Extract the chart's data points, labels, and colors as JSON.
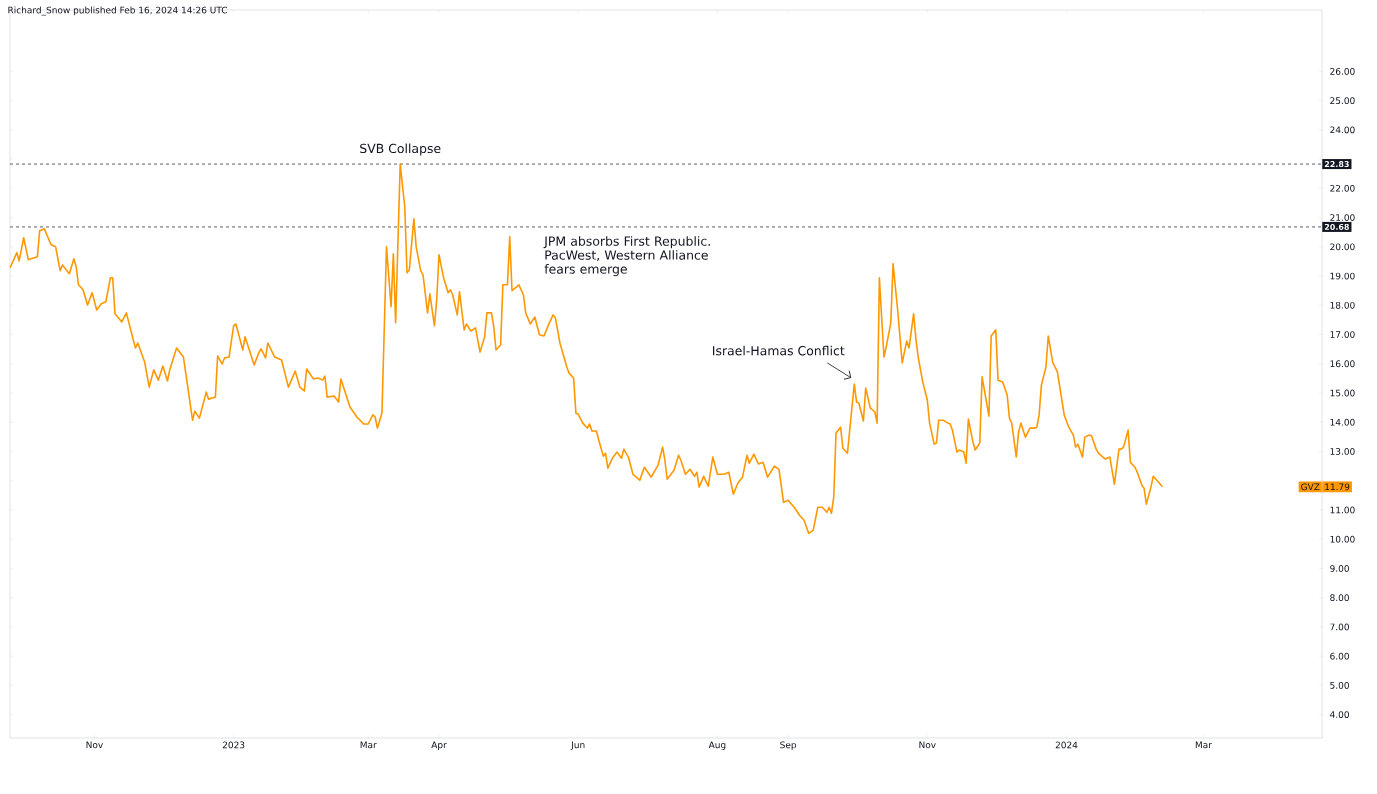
{
  "chart_data": {
    "type": "line",
    "x": [
      "2022-09-25",
      "2022-09-28",
      "2022-09-29",
      "2022-10-01",
      "2022-10-03",
      "2022-10-07",
      "2022-10-08",
      "2022-10-10",
      "2022-10-13",
      "2022-10-15",
      "2022-10-17",
      "2022-10-18",
      "2022-10-21",
      "2022-10-23",
      "2022-10-24",
      "2022-10-25",
      "2022-10-27",
      "2022-10-29",
      "2022-10-31",
      "2022-11-02",
      "2022-11-04",
      "2022-11-06",
      "2022-11-08",
      "2022-11-09",
      "2022-11-10",
      "2022-11-13",
      "2022-11-15",
      "2022-11-18",
      "2022-11-19",
      "2022-11-20",
      "2022-11-23",
      "2022-11-25",
      "2022-11-27",
      "2022-11-29",
      "2022-12-01",
      "2022-12-03",
      "2022-12-04",
      "2022-12-07",
      "2022-12-10",
      "2022-12-14",
      "2022-12-15",
      "2022-12-17",
      "2022-12-20",
      "2022-12-21",
      "2022-12-24",
      "2022-12-25",
      "2022-12-27",
      "2022-12-28",
      "2022-12-30",
      "2023-01-01",
      "2023-01-02",
      "2023-01-05",
      "2023-01-06",
      "2023-01-10",
      "2023-01-12",
      "2023-01-13",
      "2023-01-15",
      "2023-01-16",
      "2023-01-19",
      "2023-01-22",
      "2023-01-25",
      "2023-01-28",
      "2023-01-30",
      "2023-02-01",
      "2023-02-02",
      "2023-02-05",
      "2023-02-07",
      "2023-02-09",
      "2023-02-10",
      "2023-02-11",
      "2023-02-14",
      "2023-02-16",
      "2023-02-17",
      "2023-02-19",
      "2023-02-21",
      "2023-02-24",
      "2023-02-27",
      "2023-03-01",
      "2023-03-03",
      "2023-03-04",
      "2023-03-05",
      "2023-03-07",
      "2023-03-09",
      "2023-03-11",
      "2023-03-12",
      "2023-03-13",
      "2023-03-15",
      "2023-03-17",
      "2023-03-18",
      "2023-03-19",
      "2023-03-21",
      "2023-03-22",
      "2023-03-24",
      "2023-03-25",
      "2023-03-27",
      "2023-03-28",
      "2023-03-30",
      "2023-03-31",
      "2023-04-01",
      "2023-04-03",
      "2023-04-05",
      "2023-04-06",
      "2023-04-07",
      "2023-04-09",
      "2023-04-10",
      "2023-04-12",
      "2023-04-13",
      "2023-04-15",
      "2023-04-17",
      "2023-04-19",
      "2023-04-21",
      "2023-04-22",
      "2023-04-24",
      "2023-04-25",
      "2023-04-26",
      "2023-04-28",
      "2023-04-29",
      "2023-05-01",
      "2023-05-02",
      "2023-05-03",
      "2023-05-05",
      "2023-05-06",
      "2023-05-08",
      "2023-05-09",
      "2023-05-11",
      "2023-05-13",
      "2023-05-15",
      "2023-05-17",
      "2023-05-19",
      "2023-05-21",
      "2023-05-22",
      "2023-05-24",
      "2023-05-27",
      "2023-05-28",
      "2023-05-30",
      "2023-05-31",
      "2023-06-01",
      "2023-06-03",
      "2023-06-05",
      "2023-06-06",
      "2023-06-07",
      "2023-06-09",
      "2023-06-10",
      "2023-06-12",
      "2023-06-13",
      "2023-06-14",
      "2023-06-16",
      "2023-06-18",
      "2023-06-20",
      "2023-06-21",
      "2023-06-23",
      "2023-06-25",
      "2023-06-28",
      "2023-06-30",
      "2023-07-03",
      "2023-07-06",
      "2023-07-08",
      "2023-07-09",
      "2023-07-10",
      "2023-07-13",
      "2023-07-15",
      "2023-07-16",
      "2023-07-18",
      "2023-07-20",
      "2023-07-22",
      "2023-07-23",
      "2023-07-24",
      "2023-07-26",
      "2023-07-28",
      "2023-07-30",
      "2023-08-01",
      "2023-08-04",
      "2023-08-06",
      "2023-08-08",
      "2023-08-10",
      "2023-08-12",
      "2023-08-14",
      "2023-08-15",
      "2023-08-17",
      "2023-08-19",
      "2023-08-21",
      "2023-08-23",
      "2023-08-26",
      "2023-08-28",
      "2023-08-30",
      "2023-09-01",
      "2023-09-04",
      "2023-09-06",
      "2023-09-08",
      "2023-09-10",
      "2023-09-12",
      "2023-09-14",
      "2023-09-16",
      "2023-09-18",
      "2023-09-19",
      "2023-09-20",
      "2023-09-21",
      "2023-09-22",
      "2023-09-24",
      "2023-09-25",
      "2023-09-27",
      "2023-09-30",
      "2023-10-01",
      "2023-10-02",
      "2023-10-04",
      "2023-10-05",
      "2023-10-07",
      "2023-10-09",
      "2023-10-10",
      "2023-10-11",
      "2023-10-13",
      "2023-10-14",
      "2023-10-16",
      "2023-10-17",
      "2023-10-19",
      "2023-10-21",
      "2023-10-23",
      "2023-10-24",
      "2023-10-26",
      "2023-10-27",
      "2023-10-28",
      "2023-10-30",
      "2023-11-01",
      "2023-11-02",
      "2023-11-04",
      "2023-11-05",
      "2023-11-06",
      "2023-11-08",
      "2023-11-10",
      "2023-11-11",
      "2023-11-12",
      "2023-11-14",
      "2023-11-15",
      "2023-11-17",
      "2023-11-18",
      "2023-11-19",
      "2023-11-21",
      "2023-11-22",
      "2023-11-24",
      "2023-11-25",
      "2023-11-28",
      "2023-11-29",
      "2023-12-01",
      "2023-12-02",
      "2023-12-04",
      "2023-12-06",
      "2023-12-07",
      "2023-12-08",
      "2023-12-10",
      "2023-12-11",
      "2023-12-12",
      "2023-12-14",
      "2023-12-16",
      "2023-12-18",
      "2023-12-19",
      "2023-12-20",
      "2023-12-21",
      "2023-12-23",
      "2023-12-24",
      "2023-12-26",
      "2023-12-27",
      "2023-12-28",
      "2023-12-31",
      "2024-01-02",
      "2024-01-04",
      "2024-01-05",
      "2024-01-06",
      "2024-01-08",
      "2024-01-09",
      "2024-01-11",
      "2024-01-12",
      "2024-01-14",
      "2024-01-15",
      "2024-01-18",
      "2024-01-20",
      "2024-01-22",
      "2024-01-24",
      "2024-01-25",
      "2024-01-26",
      "2024-01-28",
      "2024-01-29",
      "2024-01-31",
      "2024-02-01",
      "2024-02-03",
      "2024-02-04",
      "2024-02-05",
      "2024-02-07",
      "2024-02-08",
      "2024-02-10",
      "2024-02-12"
    ],
    "series": [
      {
        "name": "GVZ",
        "color": "#ff9800",
        "values": [
          19.28,
          19.8,
          19.52,
          20.31,
          19.56,
          19.66,
          20.55,
          20.62,
          20.07,
          20.0,
          19.18,
          19.38,
          19.08,
          19.59,
          19.32,
          18.7,
          18.53,
          18.01,
          18.43,
          17.84,
          18.05,
          18.12,
          18.94,
          18.94,
          17.71,
          17.43,
          17.74,
          16.82,
          16.54,
          16.71,
          16.06,
          15.2,
          15.79,
          15.44,
          15.92,
          15.41,
          15.79,
          16.54,
          16.23,
          14.07,
          14.38,
          14.14,
          15.03,
          14.79,
          14.86,
          16.27,
          15.99,
          16.2,
          16.23,
          17.3,
          17.36,
          16.47,
          16.92,
          15.96,
          16.37,
          16.51,
          16.2,
          16.71,
          16.23,
          16.13,
          15.2,
          15.75,
          15.2,
          15.07,
          15.82,
          15.48,
          15.51,
          15.44,
          15.58,
          14.86,
          14.9,
          14.69,
          15.48,
          15.0,
          14.52,
          14.18,
          13.94,
          13.94,
          14.25,
          14.18,
          13.8,
          14.31,
          20.0,
          17.95,
          19.76,
          17.4,
          22.83,
          21.37,
          19.11,
          19.21,
          20.96,
          20.0,
          19.18,
          19.04,
          17.74,
          18.39,
          17.3,
          18.19,
          19.73,
          18.94,
          18.43,
          18.53,
          18.36,
          17.67,
          18.46,
          17.16,
          17.36,
          17.12,
          17.23,
          16.4,
          16.92,
          17.74,
          17.74,
          17.26,
          16.47,
          16.64,
          18.7,
          18.7,
          20.35,
          18.5,
          18.63,
          18.7,
          18.36,
          17.74,
          17.36,
          17.6,
          16.99,
          16.95,
          17.33,
          17.67,
          17.57,
          16.71,
          15.89,
          15.68,
          15.51,
          14.31,
          14.28,
          13.97,
          13.8,
          13.94,
          13.7,
          13.7,
          13.39,
          12.84,
          12.94,
          12.43,
          12.77,
          12.98,
          12.77,
          13.08,
          12.81,
          12.22,
          12.02,
          12.46,
          12.12,
          12.53,
          13.15,
          12.7,
          12.05,
          12.36,
          12.87,
          12.7,
          12.22,
          12.39,
          12.15,
          12.29,
          11.78,
          12.15,
          11.81,
          12.81,
          12.22,
          12.22,
          12.29,
          11.54,
          11.92,
          12.12,
          12.87,
          12.6,
          12.91,
          12.57,
          12.63,
          12.12,
          12.5,
          12.39,
          11.26,
          11.33,
          11.06,
          10.82,
          10.65,
          10.2,
          10.3,
          11.09,
          11.09,
          10.92,
          11.09,
          10.89,
          11.44,
          13.63,
          13.83,
          13.11,
          12.94,
          15.31,
          14.69,
          14.66,
          14.04,
          15.17,
          14.49,
          14.35,
          13.97,
          18.94,
          16.23,
          16.58,
          17.4,
          19.42,
          17.84,
          16.03,
          16.78,
          16.54,
          17.71,
          16.85,
          16.23,
          15.38,
          14.76,
          13.97,
          13.25,
          13.29,
          14.07,
          14.07,
          13.97,
          13.94,
          13.73,
          12.98,
          13.05,
          12.98,
          12.6,
          14.11,
          13.32,
          13.05,
          13.29,
          15.55,
          14.21,
          16.95,
          17.16,
          15.44,
          15.38,
          14.93,
          14.14,
          13.97,
          12.81,
          13.66,
          13.97,
          13.49,
          13.8,
          13.8,
          13.83,
          14.25,
          15.27,
          15.89,
          16.95,
          16.03,
          15.89,
          15.72,
          14.25,
          13.83,
          13.56,
          13.15,
          13.25,
          12.81,
          13.49,
          13.56,
          13.53,
          13.08,
          12.94,
          12.74,
          12.81,
          11.88,
          13.08,
          13.08,
          13.15,
          13.73,
          12.63,
          12.46,
          12.29,
          11.85,
          11.74,
          11.2,
          11.78,
          12.15,
          11.98,
          11.79
        ]
      }
    ],
    "xlim": [
      "2022-09-25",
      "2024-04-22"
    ],
    "xticks": [
      {
        "value": "2022-11-01",
        "label": "Nov"
      },
      {
        "value": "2023-01-01",
        "label": "2023"
      },
      {
        "value": "2023-03-01",
        "label": "Mar"
      },
      {
        "value": "2023-04-01",
        "label": "Apr"
      },
      {
        "value": "2023-06-01",
        "label": "Jun"
      },
      {
        "value": "2023-08-01",
        "label": "Aug"
      },
      {
        "value": "2023-09-01",
        "label": "Sep"
      },
      {
        "value": "2023-11-01",
        "label": "Nov"
      },
      {
        "value": "2024-01-01",
        "label": "2024"
      },
      {
        "value": "2024-03-01",
        "label": "Mar"
      }
    ],
    "ylim": [
      3.2,
      28.1
    ],
    "yticks": [
      {
        "value": 4,
        "label": "4.00"
      },
      {
        "value": 5,
        "label": "5.00"
      },
      {
        "value": 6,
        "label": "6.00"
      },
      {
        "value": 7,
        "label": "7.00"
      },
      {
        "value": 8,
        "label": "8.00"
      },
      {
        "value": 9,
        "label": "9.00"
      },
      {
        "value": 10,
        "label": "10.00"
      },
      {
        "value": 11,
        "label": "11.00"
      },
      {
        "value": 12,
        "label": null
      },
      {
        "value": 13,
        "label": "13.00"
      },
      {
        "value": 14,
        "label": "14.00"
      },
      {
        "value": 15,
        "label": "15.00"
      },
      {
        "value": 16,
        "label": "16.00"
      },
      {
        "value": 17,
        "label": "17.00"
      },
      {
        "value": 18,
        "label": "18.00"
      },
      {
        "value": 19,
        "label": "19.00"
      },
      {
        "value": 20,
        "label": "20.00"
      },
      {
        "value": 21,
        "label": "21.00"
      },
      {
        "value": 22,
        "label": "22.00"
      },
      {
        "value": 23,
        "label": null
      },
      {
        "value": 24,
        "label": "24.00"
      },
      {
        "value": 25,
        "label": "25.00"
      },
      {
        "value": 26,
        "label": "26.00"
      }
    ],
    "ref_lines": [
      {
        "axis": "y",
        "value": 22.83,
        "label": "22.83",
        "color": "#131722",
        "line_style": "dashed"
      },
      {
        "axis": "y",
        "value": 20.68,
        "label": "20.68",
        "color": "#131722",
        "line_style": "dashed"
      }
    ],
    "annotations": [
      "Richard_Snow published Feb 16, 2024 14:26 UTC",
      {
        "text": "SVB Collapse",
        "x": "2023-03-15",
        "y": 22.83
      },
      "JPM absorbs First Republic. PacWest, Western Alliance fears emerge",
      {
        "text": "Israel-Hamas Conflict",
        "x": "2023-09-30",
        "y": 15.31
      },
      "11.79"
    ],
    "grid": false,
    "legend": "right"
  }
}
